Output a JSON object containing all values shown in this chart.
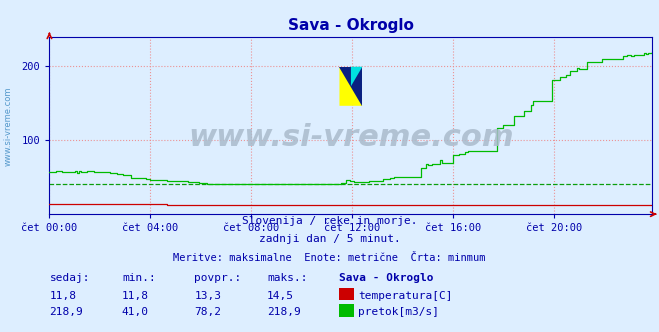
{
  "title": "Sava - Okroglo",
  "title_color": "#0000aa",
  "bg_color": "#ddeeff",
  "plot_bg_color": "#ddeeff",
  "grid_color_v": "#ee8888",
  "grid_color_h": "#ee8888",
  "x_labels": [
    "čet 00:00",
    "čet 04:00",
    "čet 08:00",
    "čet 12:00",
    "čet 16:00",
    "čet 20:00"
  ],
  "x_ticks_idx": [
    0,
    48,
    96,
    144,
    192,
    240
  ],
  "total_points": 288,
  "y_min": 0,
  "y_max": 240,
  "y_ticks": [
    100,
    200
  ],
  "temp_color": "#cc0000",
  "flow_color": "#00bb00",
  "min_line_color": "#009900",
  "watermark_text": "www.si-vreme.com",
  "watermark_color": "#aabbcc",
  "left_label": "www.si-vreme.com",
  "left_label_color": "#5599cc",
  "subtitle1": "Slovenija / reke in morje.",
  "subtitle2": "zadnji dan / 5 minut.",
  "subtitle3": "Meritve: maksimalne  Enote: metrične  Črta: minmum",
  "subtitle_color": "#0000aa",
  "table_header_color": "#0000aa",
  "table_value_color": "#0000aa",
  "legend_title": "Sava - Okroglo",
  "temp_min": 11.8,
  "temp_max": 14.5,
  "temp_avg": 13.3,
  "temp_now": 11.8,
  "flow_min": 41.0,
  "flow_max": 218.9,
  "flow_avg": 78.2,
  "flow_now": 218.9,
  "axis_color": "#0000aa",
  "spine_color": "#0000aa",
  "arrow_color": "#cc0000"
}
